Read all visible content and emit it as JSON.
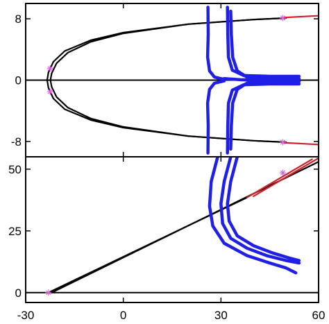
{
  "chart_data": [
    {
      "type": "line",
      "panel": "top",
      "title": "",
      "xlabel": "",
      "ylabel": "",
      "xlim": [
        -30,
        60
      ],
      "ylim": [
        -10,
        10
      ],
      "yticks": [
        8,
        0,
        -8
      ],
      "ytick_labels": [
        "8",
        "0",
        "-8"
      ],
      "xticks": [
        -30,
        0,
        30,
        60
      ],
      "grid": false,
      "legend": "none",
      "colors": {
        "black_curves": "#000000",
        "red_curves": "#d0202a",
        "blue_curves": "#1f1fe6",
        "markers": "#e060e0"
      },
      "series": [
        {
          "color": "black",
          "x": [
            50,
            40,
            20,
            0,
            -10,
            -18,
            -21.5,
            -23,
            -23.4,
            -23,
            -21.5,
            -18,
            -10,
            0,
            20,
            40,
            50
          ],
          "y": [
            8.1,
            7.9,
            7.3,
            6.2,
            5.2,
            3.8,
            2.4,
            1.0,
            0,
            -1.0,
            -2.4,
            -3.8,
            -5.2,
            -6.2,
            -7.3,
            -7.9,
            -8.1
          ]
        },
        {
          "color": "black",
          "x": [
            50,
            40,
            20,
            0,
            -10,
            -17,
            -20.5,
            -22,
            -22.4,
            -22,
            -20.5,
            -17,
            -10,
            0,
            20,
            40,
            50
          ],
          "y": [
            8.1,
            7.9,
            7.3,
            6.1,
            5.0,
            3.6,
            2.2,
            0.9,
            0,
            -0.9,
            -2.2,
            -3.6,
            -5.0,
            -6.1,
            -7.3,
            -7.9,
            -8.1
          ]
        },
        {
          "color": "red",
          "x": [
            49,
            60
          ],
          "y": [
            8.15,
            8.4
          ]
        },
        {
          "color": "red",
          "x": [
            49,
            60
          ],
          "y": [
            -8.15,
            -8.4
          ]
        },
        {
          "color": "blue",
          "x": [
            26,
            26.1,
            25.9,
            26.5,
            28,
            31
          ],
          "y": [
            9.5,
            6,
            3,
            1.2,
            0.4,
            0.1
          ]
        },
        {
          "color": "blue",
          "x": [
            26,
            26.1,
            25.9,
            26.5,
            28,
            31
          ],
          "y": [
            -9.5,
            -6,
            -3,
            -1.2,
            -0.4,
            -0.1
          ]
        },
        {
          "color": "blue",
          "x": [
            32,
            32.1,
            32.3,
            33.5,
            37,
            45,
            54
          ],
          "y": [
            9.5,
            6,
            3,
            1.3,
            0.6,
            0.5,
            0.5
          ]
        },
        {
          "color": "blue",
          "x": [
            32,
            32.1,
            32.3,
            33.5,
            37,
            45,
            54
          ],
          "y": [
            -9.5,
            -6,
            -3,
            -1.3,
            -0.6,
            -0.5,
            -0.5
          ]
        },
        {
          "color": "blue",
          "x": [
            33,
            33.2,
            33.6,
            35,
            38,
            45,
            54
          ],
          "y": [
            9.0,
            6,
            3,
            1.2,
            0.4,
            0.2,
            0.2
          ]
        },
        {
          "color": "blue",
          "x": [
            33,
            33.2,
            33.6,
            35,
            38,
            45,
            54
          ],
          "y": [
            -9.0,
            -6,
            -3,
            -1.2,
            -0.4,
            -0.2,
            -0.2
          ]
        },
        {
          "color": "blue",
          "x": [
            31,
            36,
            40,
            44,
            48
          ],
          "y": [
            0.2,
            0.05,
            0,
            0,
            0
          ]
        }
      ],
      "markers": [
        {
          "x": -22.5,
          "y": 1.5
        },
        {
          "x": -22.5,
          "y": -1.5
        },
        {
          "x": 49,
          "y": 8.1
        },
        {
          "x": 49,
          "y": -8.1
        }
      ]
    },
    {
      "type": "line",
      "panel": "bottom",
      "title": "",
      "xlabel": "",
      "ylabel": "",
      "xlim": [
        -30,
        60
      ],
      "ylim": [
        -4,
        55
      ],
      "yticks": [
        50,
        25,
        0
      ],
      "ytick_labels": [
        "50",
        "25",
        "0"
      ],
      "xticks": [
        -30,
        0,
        30,
        60
      ],
      "xtick_labels": [
        "-30",
        "0",
        "30",
        "60"
      ],
      "grid": false,
      "legend": "none",
      "series": [
        {
          "color": "black",
          "x": [
            -23,
            38
          ],
          "y": [
            0,
            38.5
          ]
        },
        {
          "color": "black",
          "x": [
            -22,
            60
          ],
          "y": [
            0,
            53
          ]
        },
        {
          "color": "red",
          "x": [
            38,
            58
          ],
          "y": [
            38.5,
            54
          ]
        },
        {
          "color": "red",
          "x": [
            40,
            60
          ],
          "y": [
            39,
            54.5
          ]
        },
        {
          "color": "blue",
          "x": [
            29,
            27,
            26.5,
            27.5,
            31,
            38,
            45,
            50,
            53
          ],
          "y": [
            55,
            45,
            35,
            27,
            20,
            15,
            12,
            10,
            8
          ]
        },
        {
          "color": "blue",
          "x": [
            33,
            31,
            30,
            30.5,
            33,
            38,
            44,
            50,
            54
          ],
          "y": [
            55,
            45,
            36,
            28,
            22,
            18,
            15,
            13,
            12
          ]
        },
        {
          "color": "blue",
          "x": [
            35,
            33,
            32,
            32.5,
            35,
            40,
            46,
            51,
            54
          ],
          "y": [
            55,
            45,
            36,
            29,
            23,
            19,
            16,
            14,
            13
          ]
        }
      ],
      "markers": [
        {
          "x": -23,
          "y": 0
        },
        {
          "x": 49,
          "y": 48.5
        }
      ]
    }
  ]
}
